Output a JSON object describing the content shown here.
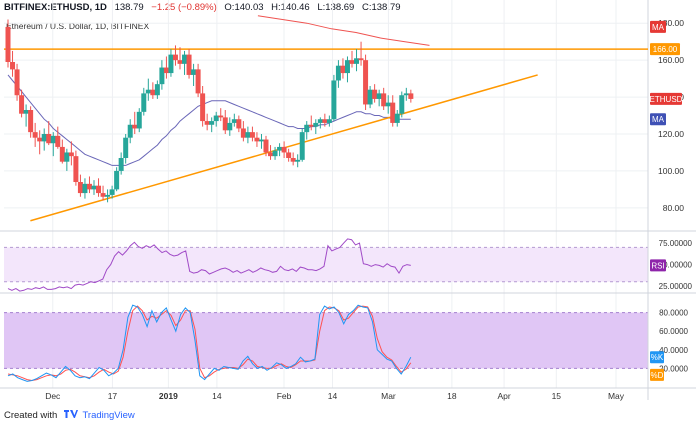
{
  "header": {
    "symbol": "BITFINEX:ETHUSD, 1D",
    "last": "138.79",
    "change": "−1.25 (−0.89%)",
    "open": "O:140.03",
    "high": "H:140.46",
    "low": "L:138.69",
    "close": "C:138.79"
  },
  "subtitle": "Ethereum / U.S. Dollar, 1D, BITFINEX",
  "footer": {
    "created_with": "Created with",
    "brand": "TradingView"
  },
  "price_tags": {
    "ma_top": "MA",
    "resistance": "166.00",
    "symbol": "ETHUSD",
    "ma_bottom": "MA"
  },
  "indicator_tags": {
    "rsi": "RSI",
    "stoch_k": "%K",
    "stoch_d": "%D"
  },
  "colors": {
    "up": "#26a69a",
    "down": "#ef5350",
    "ma_fast": "#6a67b8",
    "ma_slow": "#ef5350",
    "trendline": "#ff9800",
    "rsi_line": "#a04ac7",
    "rsi_band": "#f3e6fb",
    "stoch_band": "#e0c6f5",
    "stoch_k": "#2196f3",
    "stoch_d": "#ff5252"
  },
  "chart_data": [
    {
      "type": "candlestick",
      "title": "Ethereum / U.S. Dollar, 1D, BITFINEX",
      "y_ticks": [
        "180.00",
        "160.00",
        "140.00",
        "120.00",
        "100.00",
        "80.00"
      ],
      "ylim": [
        68,
        185
      ],
      "x_ticks": [
        "Dec",
        "17",
        "2019",
        "14",
        "Feb",
        "14",
        "Mar",
        "18",
        "Apr",
        "15",
        "May"
      ],
      "horizontal_line": 166.0,
      "trendline": {
        "from": {
          "x": "2018-11-25",
          "y": 73
        },
        "to": {
          "x": "2019-04-10",
          "y": 152
        }
      },
      "candles_ohlc": [
        [
          178,
          182,
          156,
          159
        ],
        [
          159,
          165,
          151,
          155
        ],
        [
          155,
          158,
          138,
          141
        ],
        [
          141,
          144,
          129,
          131
        ],
        [
          131,
          136,
          124,
          133
        ],
        [
          133,
          135,
          118,
          121
        ],
        [
          121,
          126,
          113,
          118
        ],
        [
          118,
          122,
          109,
          116
        ],
        [
          116,
          123,
          111,
          120
        ],
        [
          120,
          127,
          114,
          115
        ],
        [
          115,
          121,
          108,
          119
        ],
        [
          119,
          124,
          112,
          113
        ],
        [
          113,
          117,
          104,
          105
        ],
        [
          105,
          112,
          100,
          110
        ],
        [
          110,
          116,
          103,
          108
        ],
        [
          108,
          111,
          92,
          94
        ],
        [
          94,
          98,
          86,
          88
        ],
        [
          88,
          96,
          85,
          93
        ],
        [
          93,
          97,
          88,
          90
        ],
        [
          90,
          95,
          87,
          92
        ],
        [
          92,
          96,
          86,
          88
        ],
        [
          88,
          92,
          84,
          86
        ],
        [
          86,
          90,
          83,
          87
        ],
        [
          87,
          92,
          85,
          90
        ],
        [
          90,
          102,
          89,
          100
        ],
        [
          100,
          110,
          98,
          107
        ],
        [
          107,
          120,
          104,
          118
        ],
        [
          118,
          128,
          115,
          125
        ],
        [
          125,
          132,
          120,
          123
        ],
        [
          123,
          134,
          121,
          132
        ],
        [
          132,
          145,
          130,
          142
        ],
        [
          142,
          150,
          138,
          144
        ],
        [
          144,
          148,
          139,
          141
        ],
        [
          141,
          149,
          139,
          147
        ],
        [
          147,
          160,
          144,
          156
        ],
        [
          156,
          162,
          150,
          153
        ],
        [
          153,
          166,
          151,
          163
        ],
        [
          163,
          168,
          157,
          160
        ],
        [
          160,
          167,
          155,
          158
        ],
        [
          158,
          165,
          152,
          163
        ],
        [
          163,
          166,
          150,
          152
        ],
        [
          152,
          158,
          146,
          155
        ],
        [
          155,
          158,
          140,
          142
        ],
        [
          142,
          146,
          124,
          127
        ],
        [
          127,
          131,
          122,
          125
        ],
        [
          125,
          129,
          121,
          127
        ],
        [
          127,
          132,
          124,
          130
        ],
        [
          130,
          134,
          127,
          129
        ],
        [
          129,
          133,
          120,
          122
        ],
        [
          122,
          129,
          119,
          126
        ],
        [
          126,
          131,
          124,
          128
        ],
        [
          128,
          130,
          121,
          123
        ],
        [
          123,
          127,
          116,
          118
        ],
        [
          118,
          124,
          115,
          121
        ],
        [
          121,
          124,
          116,
          118
        ],
        [
          118,
          121,
          113,
          116
        ],
        [
          116,
          120,
          112,
          117
        ],
        [
          117,
          119,
          108,
          110
        ],
        [
          110,
          114,
          106,
          108
        ],
        [
          108,
          113,
          106,
          111
        ],
        [
          111,
          115,
          108,
          113
        ],
        [
          113,
          116,
          107,
          110
        ],
        [
          110,
          112,
          105,
          107
        ],
        [
          107,
          110,
          103,
          105
        ],
        [
          105,
          109,
          102,
          106
        ],
        [
          106,
          123,
          105,
          121
        ],
        [
          121,
          127,
          117,
          125
        ],
        [
          125,
          130,
          122,
          124
        ],
        [
          124,
          128,
          120,
          126
        ],
        [
          126,
          129,
          123,
          128
        ],
        [
          128,
          131,
          124,
          126
        ],
        [
          126,
          130,
          124,
          128
        ],
        [
          128,
          152,
          127,
          149
        ],
        [
          149,
          160,
          145,
          157
        ],
        [
          157,
          161,
          150,
          153
        ],
        [
          153,
          162,
          148,
          160
        ],
        [
          160,
          165,
          156,
          158
        ],
        [
          158,
          166,
          154,
          161
        ],
        [
          161,
          170,
          157,
          160
        ],
        [
          160,
          163,
          133,
          136
        ],
        [
          136,
          146,
          134,
          144
        ],
        [
          144,
          147,
          137,
          139
        ],
        [
          139,
          144,
          135,
          142
        ],
        [
          142,
          145,
          133,
          135
        ],
        [
          135,
          141,
          131,
          137
        ],
        [
          137,
          141,
          124,
          126
        ],
        [
          126,
          133,
          124,
          131
        ],
        [
          131,
          143,
          129,
          141
        ],
        [
          141,
          145,
          138,
          142
        ],
        [
          142,
          144,
          137,
          139
        ]
      ],
      "series": [
        {
          "name": "MA",
          "values": [
            152,
            149,
            146,
            143,
            140,
            137,
            134,
            131,
            128,
            126,
            123,
            121,
            119,
            117,
            115,
            113,
            111,
            109,
            108,
            107,
            106,
            105,
            104,
            103,
            103,
            103,
            103,
            104,
            105,
            106,
            108,
            110,
            112,
            114,
            117,
            119,
            122,
            124,
            127,
            129,
            131,
            133,
            135,
            136,
            137,
            138,
            138,
            138,
            138,
            137,
            136,
            135,
            134,
            133,
            132,
            131,
            130,
            129,
            128,
            127,
            126,
            125,
            124,
            124,
            123,
            123,
            123,
            124,
            124,
            125,
            125,
            126,
            127,
            128,
            129,
            130,
            131,
            132,
            132,
            131,
            131,
            130,
            130,
            129,
            129,
            128,
            128,
            128,
            128,
            128
          ]
        },
        {
          "name": "MA",
          "values": [
            184,
            182,
            180,
            177,
            175,
            172,
            170,
            168
          ]
        }
      ]
    },
    {
      "type": "line",
      "title": "RSI",
      "y_ticks": [
        "75.00000",
        "50.00000",
        "25.00000"
      ],
      "ylim": [
        18,
        88
      ],
      "band": [
        30,
        70
      ],
      "series": [
        {
          "name": "RSI",
          "values": [
            22,
            20,
            22,
            19,
            20,
            22,
            21,
            23,
            22,
            24,
            21,
            21,
            22,
            24,
            23,
            24,
            22,
            26,
            27,
            26,
            28,
            30,
            29,
            31,
            33,
            44,
            50,
            60,
            65,
            61,
            66,
            72,
            76,
            71,
            69,
            72,
            70,
            73,
            68,
            64,
            66,
            62,
            60,
            61,
            64,
            66,
            42,
            40,
            41,
            44,
            43,
            39,
            41,
            43,
            45,
            46,
            44,
            41,
            43,
            40,
            42,
            44,
            41,
            43,
            46,
            44,
            43,
            41,
            42,
            48,
            44,
            43,
            45,
            42,
            47,
            46,
            44,
            44,
            43,
            45,
            48,
            72,
            66,
            68,
            70,
            75,
            80,
            79,
            73,
            75,
            51,
            50,
            48,
            50,
            49,
            47,
            51,
            48,
            47,
            40,
            48,
            50,
            49
          ]
        }
      ]
    },
    {
      "type": "line",
      "title": "Stoch",
      "y_ticks": [
        "80.0000",
        "60.0000",
        "40.0000",
        "20.0000"
      ],
      "ylim": [
        0,
        100
      ],
      "band": [
        20,
        80
      ],
      "series": [
        {
          "name": "%K",
          "values": [
            12,
            14,
            10,
            8,
            6,
            7,
            9,
            12,
            15,
            13,
            10,
            16,
            22,
            18,
            12,
            10,
            11,
            9,
            15,
            21,
            18,
            12,
            15,
            20,
            40,
            75,
            88,
            86,
            78,
            65,
            82,
            70,
            80,
            85,
            72,
            60,
            78,
            85,
            80,
            50,
            12,
            8,
            14,
            20,
            18,
            22,
            21,
            20,
            19,
            28,
            33,
            25,
            20,
            22,
            18,
            21,
            26,
            24,
            20,
            22,
            25,
            32,
            27,
            28,
            30,
            78,
            87,
            84,
            86,
            80,
            68,
            78,
            82,
            88,
            86,
            85,
            70,
            40,
            35,
            30,
            28,
            20,
            14,
            22,
            32
          ]
        },
        {
          "name": "%D",
          "values": [
            14,
            13,
            12,
            10,
            8,
            7,
            8,
            10,
            12,
            13,
            12,
            14,
            18,
            19,
            16,
            12,
            11,
            10,
            12,
            16,
            19,
            16,
            14,
            17,
            32,
            60,
            82,
            87,
            82,
            72,
            76,
            74,
            78,
            82,
            77,
            66,
            72,
            82,
            82,
            62,
            20,
            10,
            12,
            16,
            19,
            20,
            21,
            21,
            20,
            24,
            30,
            28,
            22,
            21,
            20,
            20,
            23,
            25,
            22,
            21,
            24,
            28,
            28,
            28,
            29,
            60,
            82,
            86,
            85,
            82,
            72,
            74,
            80,
            86,
            87,
            86,
            76,
            52,
            38,
            32,
            29,
            22,
            16,
            19,
            26
          ]
        }
      ]
    }
  ]
}
